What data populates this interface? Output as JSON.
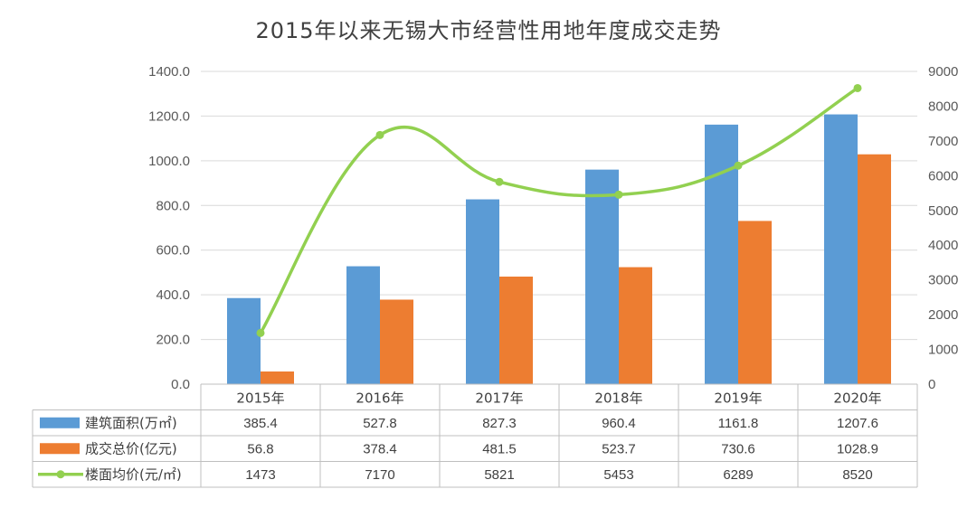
{
  "chart_data": {
    "type": "bar",
    "title": "2015年以来无锡大市经营性用地年度成交走势",
    "categories": [
      "2015年",
      "2016年",
      "2017年",
      "2018年",
      "2019年",
      "2020年"
    ],
    "series": [
      {
        "name": "建筑面积(万㎡)",
        "type": "bar",
        "axis": "left",
        "color": "#5B9BD5",
        "values": [
          385.4,
          527.8,
          827.3,
          960.4,
          1161.8,
          1207.6
        ]
      },
      {
        "name": "成交总价(亿元)",
        "type": "bar",
        "axis": "left",
        "color": "#ED7D31",
        "values": [
          56.8,
          378.4,
          481.5,
          523.7,
          730.6,
          1028.9
        ]
      },
      {
        "name": "楼面均价(元/㎡)",
        "type": "line",
        "axis": "right",
        "color": "#92D050",
        "values": [
          1473,
          7170,
          5821,
          5453,
          6289,
          8520
        ]
      }
    ],
    "left_axis": {
      "ylim": [
        0,
        1400
      ],
      "ticks": [
        "0.0",
        "200.0",
        "400.0",
        "600.0",
        "800.0",
        "1000.0",
        "1200.0",
        "1400.0"
      ]
    },
    "right_axis": {
      "ylim": [
        0,
        9000
      ],
      "ticks": [
        "0",
        "1000",
        "2000",
        "3000",
        "4000",
        "5000",
        "6000",
        "7000",
        "8000",
        "9000"
      ]
    },
    "grid": true,
    "data_table": {
      "rows": [
        [
          "385.4",
          "527.8",
          "827.3",
          "960.4",
          "1161.8",
          "1207.6"
        ],
        [
          "56.8",
          "378.4",
          "481.5",
          "523.7",
          "730.6",
          "1028.9"
        ],
        [
          "1473",
          "7170",
          "5821",
          "5453",
          "6289",
          "8520"
        ]
      ]
    }
  }
}
